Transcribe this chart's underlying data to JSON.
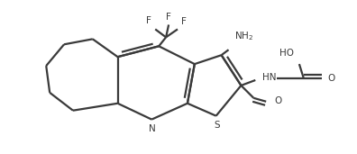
{
  "bg_color": "#ffffff",
  "line_color": "#3a3a3a",
  "line_width": 1.6,
  "figsize": [
    3.96,
    1.71
  ],
  "dpi": 100,
  "xlim": [
    0,
    3.96
  ],
  "ylim": [
    0,
    1.71
  ]
}
